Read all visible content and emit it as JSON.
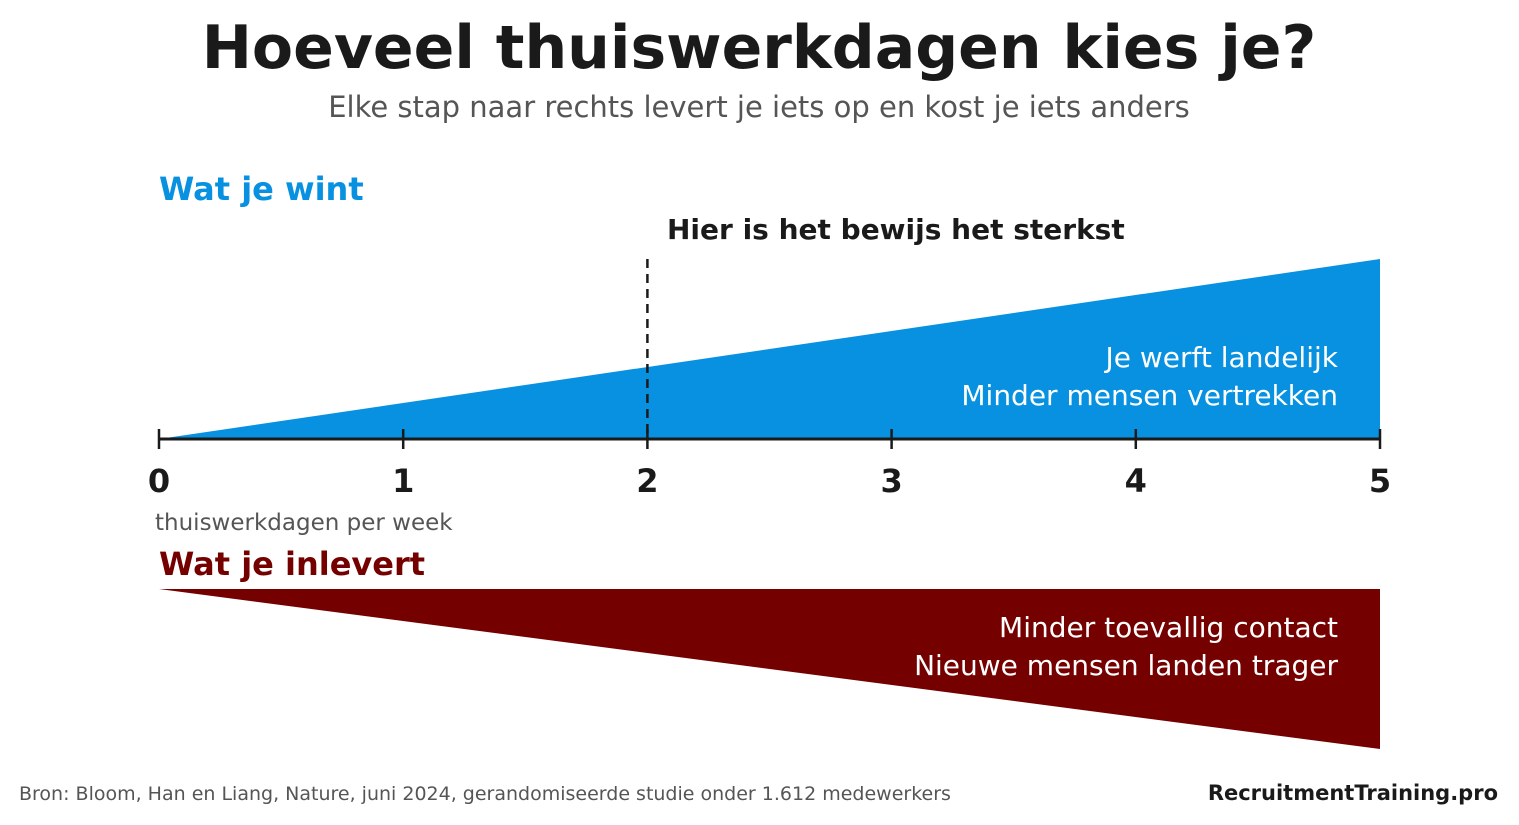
{
  "title": "Hoeveel thuiswerkdagen kies je?",
  "subtitle": "Elke stap naar rechts levert je iets op en kost je iets anders",
  "colors": {
    "gain": "#0791e0",
    "loss": "#750000",
    "text_dark": "#1a1a1a",
    "text_muted": "#555555",
    "axis": "#1a1a1a"
  },
  "gain_section": {
    "heading": "Wat je wint",
    "lines": [
      "Je werft landelijk",
      "Minder mensen vertrekken"
    ]
  },
  "loss_section": {
    "heading": "Wat je inlevert",
    "lines": [
      "Minder toevallig contact",
      "Nieuwe mensen landen trager"
    ]
  },
  "evidence_note": "Hier is het bewijs het sterkst",
  "footer": {
    "source": "Bron: Bloom, Han en Liang, Nature, juni 2024, gerandomiseerde studie onder 1.612 medewerkers",
    "brand": "RecruitmentTraining.pro"
  },
  "chart_data": {
    "type": "area",
    "xlabel": "thuiswerkdagen per week",
    "xlim": [
      0,
      5
    ],
    "ticks": [
      0,
      1,
      2,
      3,
      4,
      5
    ],
    "tick_labels": [
      "0",
      "1",
      "2",
      "3",
      "4",
      "5"
    ],
    "marker_x": 2,
    "series": [
      {
        "name": "Wat je wint",
        "x": [
          0,
          5
        ],
        "y": [
          0,
          1
        ]
      },
      {
        "name": "Wat je inlevert",
        "x": [
          0,
          5
        ],
        "y": [
          0,
          1
        ]
      }
    ]
  }
}
